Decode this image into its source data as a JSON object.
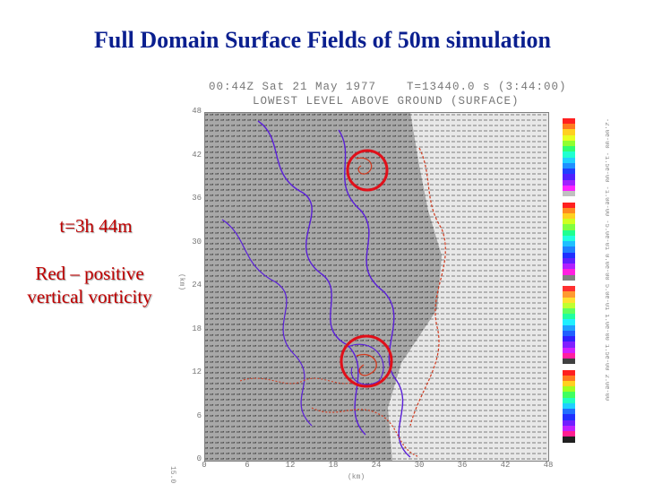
{
  "slide": {
    "title": "Full Domain Surface Fields of 50m simulation",
    "time_note": "t=3h 44m",
    "vorticity_note_line1": "Red – positive",
    "vorticity_note_line2": "vertical vorticity"
  },
  "plot": {
    "header_line1": "00:44Z Sat 21 May 1977    T=13440.0 s (3:44:00)",
    "header_line2": "LOWEST LEVEL ABOVE GROUND (SURFACE)",
    "y_axis_label": "(km)",
    "x_axis_label": "(km)",
    "y_ticks": [
      "48",
      "42",
      "36",
      "30",
      "24",
      "18",
      "12",
      "6",
      "0"
    ],
    "x_ticks": [
      "0",
      "6",
      "12",
      "18",
      "24",
      "30",
      "36",
      "42",
      "48"
    ],
    "corner_label": "15.0",
    "highlight_circle_color": "#e0101a",
    "contour_colors": {
      "positive_vorticity": "#d23a1e",
      "field_contour": "#5a1fd8"
    }
  },
  "colorbar": {
    "colors": [
      "#ff2020",
      "#ff7a20",
      "#ffd020",
      "#e8ff20",
      "#90ff30",
      "#30ff70",
      "#20ffd0",
      "#20d0ff",
      "#2090ff",
      "#2040ff",
      "#5020ff",
      "#a020ff",
      "#ff20ff",
      "#c0c0c0",
      "#ffffff",
      "#ff2020",
      "#ff8a20",
      "#ffd020",
      "#d0ff20",
      "#80ff40",
      "#20ff90",
      "#20ffe0",
      "#20c0ff",
      "#2080ff",
      "#2030ff",
      "#6020ff",
      "#b020ff",
      "#ff20e0",
      "#808080",
      "#ffffff",
      "#ff3030",
      "#ff9a30",
      "#ffe030",
      "#c0ff30",
      "#60ff60",
      "#20ffa0",
      "#20f0ff",
      "#20a0ff",
      "#2060ff",
      "#3020ff",
      "#8020ff",
      "#d020ff",
      "#ff20a0",
      "#404040",
      "#ffffff",
      "#ff2020",
      "#ff7a20",
      "#ffd020",
      "#a0ff20",
      "#40ff60",
      "#20ffc0",
      "#20d0ff",
      "#2070ff",
      "#2030ff",
      "#7020ff",
      "#c020ff",
      "#ff2090",
      "#202020"
    ],
    "label_text": "-2.0e-00 -1.5e-00 -1.0e-00 -5.0e-01 0.0e-00 5.0e-01 1.0e-00 1.5e-00 2.0e-00"
  }
}
